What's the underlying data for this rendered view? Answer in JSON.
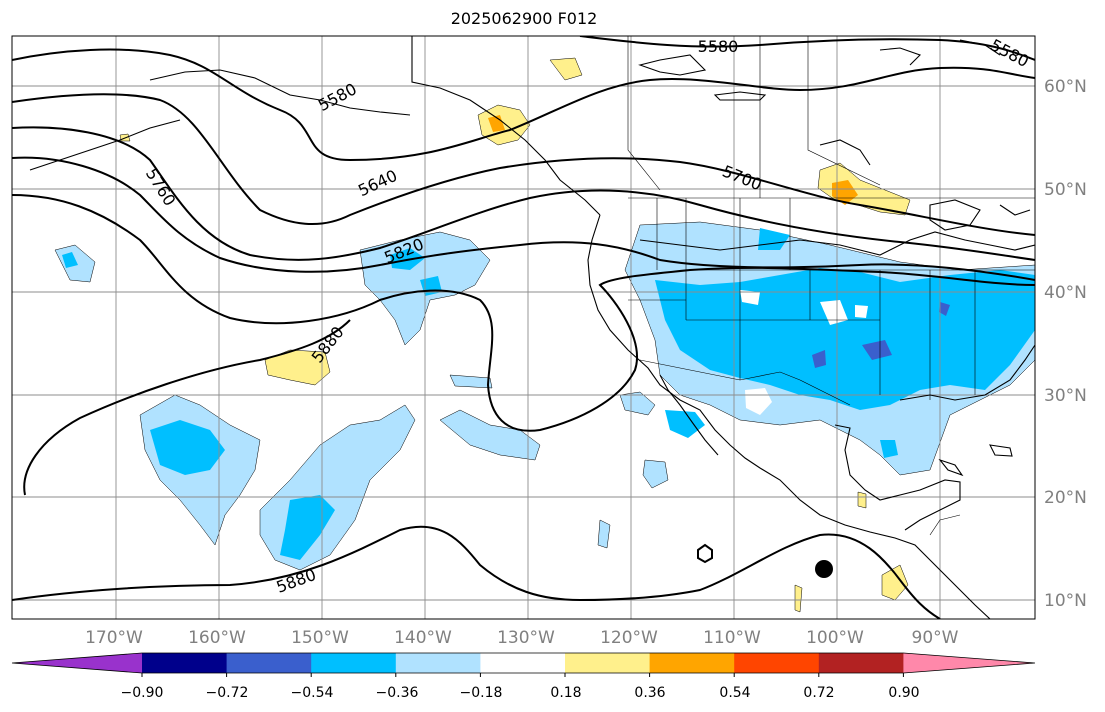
{
  "title": "2025062900 F012",
  "map": {
    "lon_labels": [
      "170°W",
      "160°W",
      "150°W",
      "140°W",
      "130°W",
      "120°W",
      "110°W",
      "100°W",
      "90°W"
    ],
    "lat_labels": [
      "60°N",
      "50°N",
      "40°N",
      "30°N",
      "20°N",
      "10°N"
    ],
    "contour_labels": [
      "5580",
      "5580",
      "5580",
      "5640",
      "5700",
      "5760",
      "5820",
      "5880",
      "5880"
    ],
    "land_color": "#ffffff",
    "coast_color": "#000000",
    "grid_color": "#8c8c8c"
  },
  "colorbar": {
    "ticks": [
      "−0.90",
      "−0.72",
      "−0.54",
      "−0.36",
      "−0.18",
      "0.18",
      "0.36",
      "0.54",
      "0.72",
      "0.90"
    ],
    "colors": [
      "#9932cc",
      "#00008b",
      "#3a5fcd",
      "#00bfff",
      "#b0e2ff",
      "#ffffff",
      "#fff08c",
      "#ffa500",
      "#ff4500",
      "#b22222",
      "#ff88aa"
    ]
  }
}
